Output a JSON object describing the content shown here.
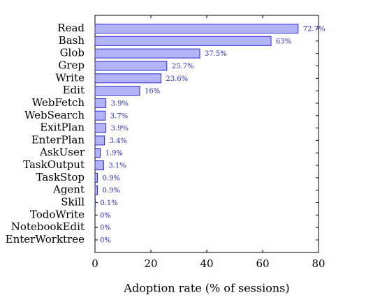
{
  "chart_data": {
    "type": "barh",
    "x_label": "Adoption rate (% of sessions)",
    "categories": [
      "Read",
      "Bash",
      "Glob",
      "Grep",
      "Write",
      "Edit",
      "WebFetch",
      "WebSearch",
      "ExitPlan",
      "EnterPlan",
      "AskUser",
      "TaskOutput",
      "TaskStop",
      "Agent",
      "Skill",
      "TodoWrite",
      "NotebookEdit",
      "EnterWorktree"
    ],
    "values": [
      72.7,
      63,
      37.5,
      25.7,
      23.6,
      16,
      3.9,
      3.7,
      3.9,
      3.4,
      1.9,
      3.1,
      0.9,
      0.9,
      0.1,
      0,
      0,
      0
    ],
    "value_labels": [
      "72.7%",
      "63%",
      "37.5%",
      "25.7%",
      "23.6%",
      "16%",
      "3.9%",
      "3.7%",
      "3.9%",
      "3.4%",
      "1.9%",
      "3.1%",
      "0.9%",
      "0.9%",
      "0.1%",
      "0%",
      "0%",
      "0%"
    ],
    "color": "#b3b3f7",
    "edge_color": "#2b2bd0",
    "label_color": "#2b2bd0",
    "xlim": [
      0,
      80
    ],
    "xticks": [
      0,
      20,
      40,
      60,
      80
    ]
  }
}
